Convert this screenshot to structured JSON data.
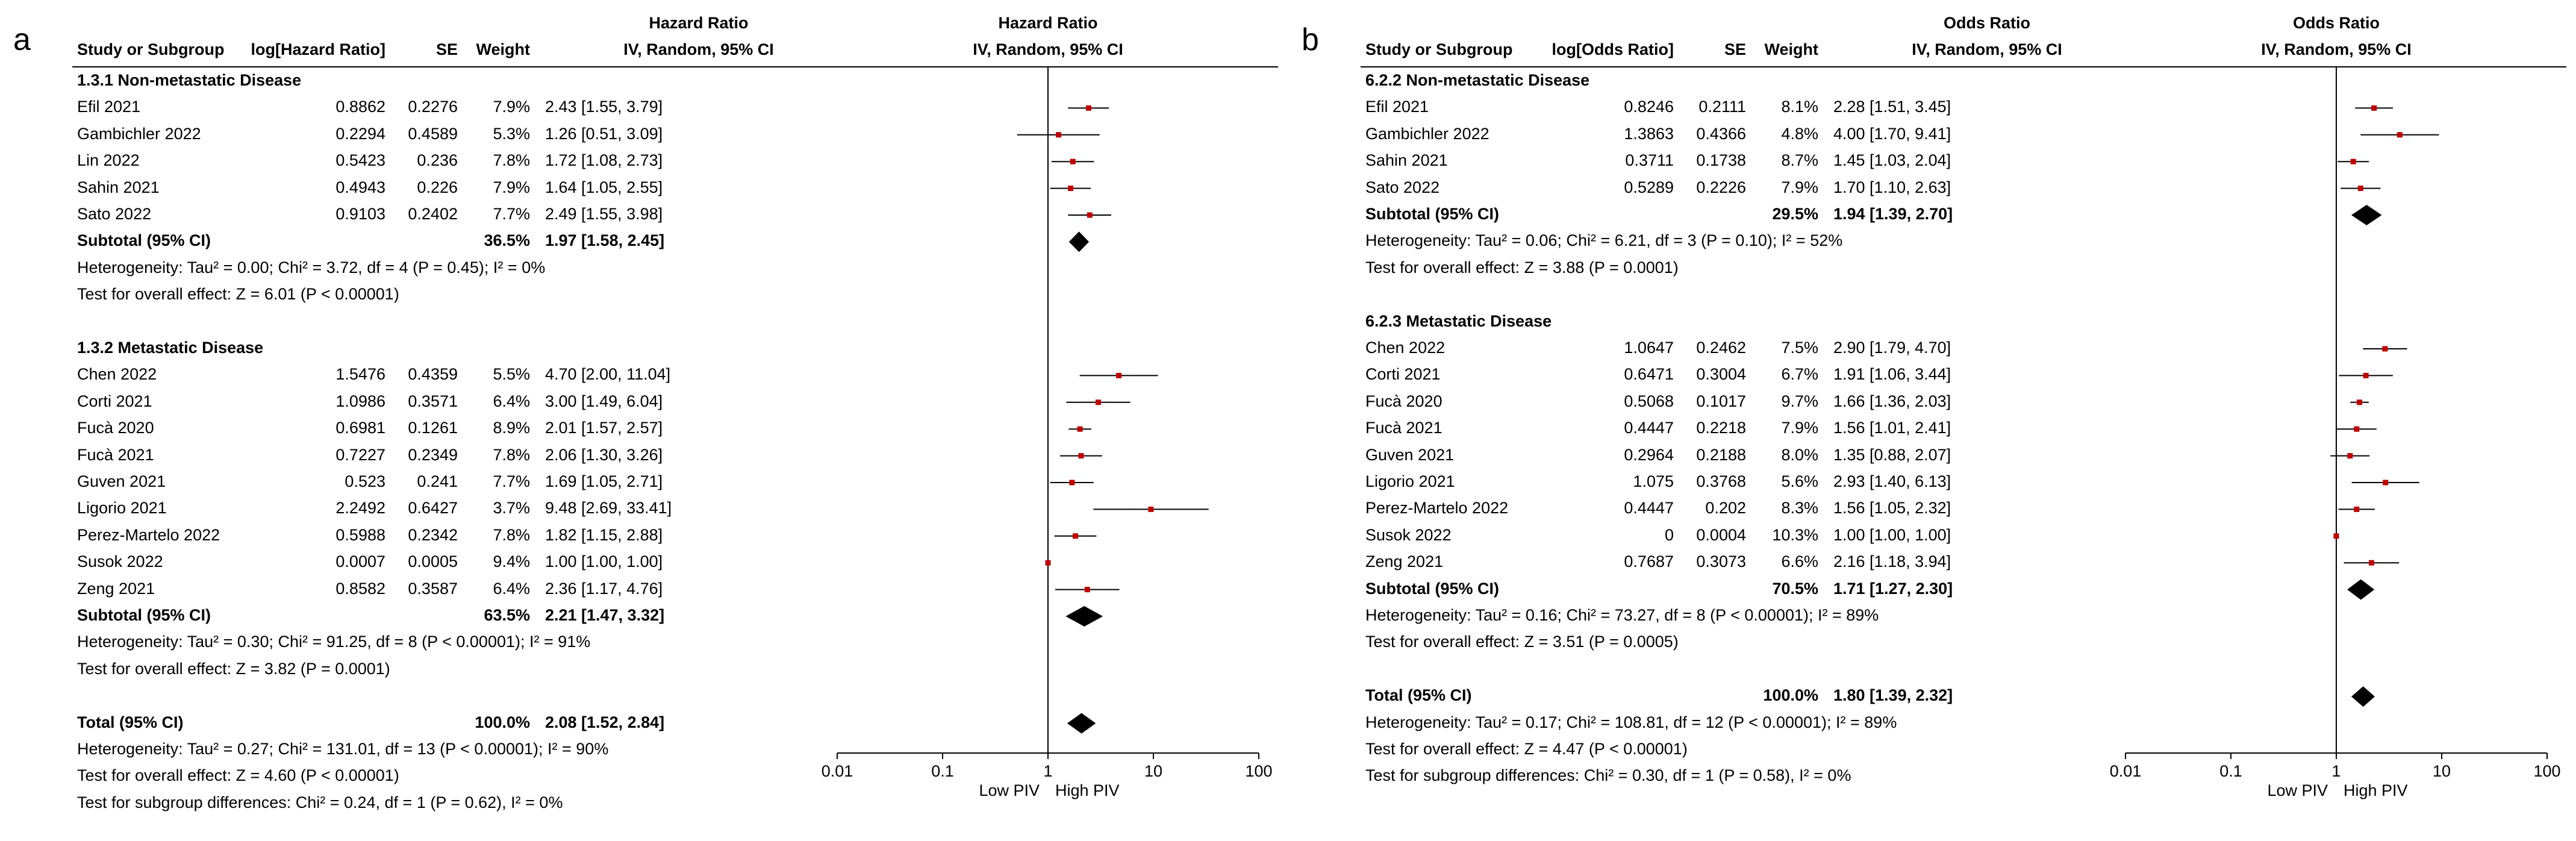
{
  "chart_data": [
    {
      "type": "forest",
      "panel_label": "a",
      "col_headers": {
        "study": "Study or Subgroup",
        "effect": "log[Hazard Ratio]",
        "se": "SE",
        "weight": "Weight",
        "ratio_top": "Hazard Ratio",
        "ratio_sub": "IV, Random, 95% CI",
        "plot_top": "Hazard Ratio",
        "plot_sub": "IV, Random, 95% CI"
      },
      "subgroups": [
        {
          "title": "1.3.1 Non-metastatic Disease",
          "studies": [
            {
              "name": "Efil 2021",
              "effect": "0.8862",
              "se": "0.2276",
              "weight": "7.9%",
              "ci_text": "2.43 [1.55, 3.79]",
              "est": 2.43,
              "lo": 1.55,
              "hi": 3.79
            },
            {
              "name": "Gambichler 2022",
              "effect": "0.2294",
              "se": "0.4589",
              "weight": "5.3%",
              "ci_text": "1.26 [0.51, 3.09]",
              "est": 1.26,
              "lo": 0.51,
              "hi": 3.09
            },
            {
              "name": "Lin 2022",
              "effect": "0.5423",
              "se": "0.236",
              "weight": "7.8%",
              "ci_text": "1.72 [1.08, 2.73]",
              "est": 1.72,
              "lo": 1.08,
              "hi": 2.73
            },
            {
              "name": "Sahin 2021",
              "effect": "0.4943",
              "se": "0.226",
              "weight": "7.9%",
              "ci_text": "1.64 [1.05, 2.55]",
              "est": 1.64,
              "lo": 1.05,
              "hi": 2.55
            },
            {
              "name": "Sato 2022",
              "effect": "0.9103",
              "se": "0.2402",
              "weight": "7.7%",
              "ci_text": "2.49 [1.55, 3.98]",
              "est": 2.49,
              "lo": 1.55,
              "hi": 3.98
            }
          ],
          "subtotal": {
            "label": "Subtotal (95% CI)",
            "weight": "36.5%",
            "ci_text": "1.97 [1.58, 2.45]",
            "est": 1.97,
            "lo": 1.58,
            "hi": 2.45
          },
          "heterogeneity": "Heterogeneity: Tau² = 0.00; Chi² = 3.72, df = 4 (P = 0.45); I² = 0%",
          "overall": "Test for overall effect: Z = 6.01 (P < 0.00001)"
        },
        {
          "title": "1.3.2 Metastatic Disease",
          "studies": [
            {
              "name": "Chen 2022",
              "effect": "1.5476",
              "se": "0.4359",
              "weight": "5.5%",
              "ci_text": "4.70 [2.00, 11.04]",
              "est": 4.7,
              "lo": 2.0,
              "hi": 11.04
            },
            {
              "name": "Corti 2021",
              "effect": "1.0986",
              "se": "0.3571",
              "weight": "6.4%",
              "ci_text": "3.00 [1.49, 6.04]",
              "est": 3.0,
              "lo": 1.49,
              "hi": 6.04
            },
            {
              "name": "Fucà 2020",
              "effect": "0.6981",
              "se": "0.1261",
              "weight": "8.9%",
              "ci_text": "2.01 [1.57, 2.57]",
              "est": 2.01,
              "lo": 1.57,
              "hi": 2.57
            },
            {
              "name": "Fucà 2021",
              "effect": "0.7227",
              "se": "0.2349",
              "weight": "7.8%",
              "ci_text": "2.06 [1.30, 3.26]",
              "est": 2.06,
              "lo": 1.3,
              "hi": 3.26
            },
            {
              "name": "Guven 2021",
              "effect": "0.523",
              "se": "0.241",
              "weight": "7.7%",
              "ci_text": "1.69 [1.05, 2.71]",
              "est": 1.69,
              "lo": 1.05,
              "hi": 2.71
            },
            {
              "name": "Ligorio 2021",
              "effect": "2.2492",
              "se": "0.6427",
              "weight": "3.7%",
              "ci_text": "9.48 [2.69, 33.41]",
              "est": 9.48,
              "lo": 2.69,
              "hi": 33.41
            },
            {
              "name": "Perez-Martelo 2022",
              "effect": "0.5988",
              "se": "0.2342",
              "weight": "7.8%",
              "ci_text": "1.82 [1.15, 2.88]",
              "est": 1.82,
              "lo": 1.15,
              "hi": 2.88
            },
            {
              "name": "Susok 2022",
              "effect": "0.0007",
              "se": "0.0005",
              "weight": "9.4%",
              "ci_text": "1.00 [1.00, 1.00]",
              "est": 1.0,
              "lo": 1.0,
              "hi": 1.0
            },
            {
              "name": "Zeng 2021",
              "effect": "0.8582",
              "se": "0.3587",
              "weight": "6.4%",
              "ci_text": "2.36 [1.17, 4.76]",
              "est": 2.36,
              "lo": 1.17,
              "hi": 4.76
            }
          ],
          "subtotal": {
            "label": "Subtotal (95% CI)",
            "weight": "63.5%",
            "ci_text": "2.21 [1.47, 3.32]",
            "est": 2.21,
            "lo": 1.47,
            "hi": 3.32
          },
          "heterogeneity": "Heterogeneity: Tau² = 0.30; Chi² = 91.25, df = 8 (P < 0.00001); I² = 91%",
          "overall": "Test for overall effect: Z = 3.82 (P = 0.0001)"
        }
      ],
      "total": {
        "label": "Total (95% CI)",
        "weight": "100.0%",
        "ci_text": "2.08 [1.52, 2.84]",
        "est": 2.08,
        "lo": 1.52,
        "hi": 2.84
      },
      "footer": [
        "Heterogeneity: Tau² = 0.27; Chi² = 131.01, df = 13 (P < 0.00001); I² = 90%",
        "Test for overall effect: Z = 4.60 (P < 0.00001)",
        "Test for subgroup differences: Chi² = 0.24, df = 1 (P = 0.62), I² = 0%"
      ],
      "x_scale": "log",
      "xlim": [
        0.01,
        100
      ],
      "x_ticks": [
        0.01,
        0.1,
        1,
        10,
        100
      ],
      "x_tick_labels": [
        "0.01",
        "0.1",
        "1",
        "10",
        "100"
      ],
      "favours_left": "Low PIV",
      "favours_right": "High PIV",
      "marker_color": "#c00000"
    },
    {
      "type": "forest",
      "panel_label": "b",
      "col_headers": {
        "study": "Study or Subgroup",
        "effect": "log[Odds Ratio]",
        "se": "SE",
        "weight": "Weight",
        "ratio_top": "Odds Ratio",
        "ratio_sub": "IV, Random, 95% CI",
        "plot_top": "Odds Ratio",
        "plot_sub": "IV, Random, 95% CI"
      },
      "subgroups": [
        {
          "title": "6.2.2 Non-metastatic Disease",
          "studies": [
            {
              "name": "Efil 2021",
              "effect": "0.8246",
              "se": "0.2111",
              "weight": "8.1%",
              "ci_text": "2.28 [1.51, 3.45]",
              "est": 2.28,
              "lo": 1.51,
              "hi": 3.45
            },
            {
              "name": "Gambichler 2022",
              "effect": "1.3863",
              "se": "0.4366",
              "weight": "4.8%",
              "ci_text": "4.00 [1.70, 9.41]",
              "est": 4.0,
              "lo": 1.7,
              "hi": 9.41
            },
            {
              "name": "Sahin 2021",
              "effect": "0.3711",
              "se": "0.1738",
              "weight": "8.7%",
              "ci_text": "1.45 [1.03, 2.04]",
              "est": 1.45,
              "lo": 1.03,
              "hi": 2.04
            },
            {
              "name": "Sato 2022",
              "effect": "0.5289",
              "se": "0.2226",
              "weight": "7.9%",
              "ci_text": "1.70 [1.10, 2.63]",
              "est": 1.7,
              "lo": 1.1,
              "hi": 2.63
            }
          ],
          "subtotal": {
            "label": "Subtotal (95% CI)",
            "weight": "29.5%",
            "ci_text": "1.94 [1.39, 2.70]",
            "est": 1.94,
            "lo": 1.39,
            "hi": 2.7
          },
          "heterogeneity": "Heterogeneity: Tau² = 0.06; Chi² = 6.21, df = 3 (P = 0.10); I² = 52%",
          "overall": "Test for overall effect: Z = 3.88 (P = 0.0001)"
        },
        {
          "title": "6.2.3 Metastatic Disease",
          "studies": [
            {
              "name": "Chen 2022",
              "effect": "1.0647",
              "se": "0.2462",
              "weight": "7.5%",
              "ci_text": "2.90 [1.79, 4.70]",
              "est": 2.9,
              "lo": 1.79,
              "hi": 4.7
            },
            {
              "name": "Corti 2021",
              "effect": "0.6471",
              "se": "0.3004",
              "weight": "6.7%",
              "ci_text": "1.91 [1.06, 3.44]",
              "est": 1.91,
              "lo": 1.06,
              "hi": 3.44
            },
            {
              "name": "Fucà 2020",
              "effect": "0.5068",
              "se": "0.1017",
              "weight": "9.7%",
              "ci_text": "1.66 [1.36, 2.03]",
              "est": 1.66,
              "lo": 1.36,
              "hi": 2.03
            },
            {
              "name": "Fucà 2021",
              "effect": "0.4447",
              "se": "0.2218",
              "weight": "7.9%",
              "ci_text": "1.56 [1.01, 2.41]",
              "est": 1.56,
              "lo": 1.01,
              "hi": 2.41
            },
            {
              "name": "Guven 2021",
              "effect": "0.2964",
              "se": "0.2188",
              "weight": "8.0%",
              "ci_text": "1.35 [0.88, 2.07]",
              "est": 1.35,
              "lo": 0.88,
              "hi": 2.07
            },
            {
              "name": "Ligorio 2021",
              "effect": "1.075",
              "se": "0.3768",
              "weight": "5.6%",
              "ci_text": "2.93 [1.40, 6.13]",
              "est": 2.93,
              "lo": 1.4,
              "hi": 6.13
            },
            {
              "name": "Perez-Martelo 2022",
              "effect": "0.4447",
              "se": "0.202",
              "weight": "8.3%",
              "ci_text": "1.56 [1.05, 2.32]",
              "est": 1.56,
              "lo": 1.05,
              "hi": 2.32
            },
            {
              "name": "Susok 2022",
              "effect": "0",
              "se": "0.0004",
              "weight": "10.3%",
              "ci_text": "1.00 [1.00, 1.00]",
              "est": 1.0,
              "lo": 1.0,
              "hi": 1.0
            },
            {
              "name": "Zeng 2021",
              "effect": "0.7687",
              "se": "0.3073",
              "weight": "6.6%",
              "ci_text": "2.16 [1.18, 3.94]",
              "est": 2.16,
              "lo": 1.18,
              "hi": 3.94
            }
          ],
          "subtotal": {
            "label": "Subtotal (95% CI)",
            "weight": "70.5%",
            "ci_text": "1.71 [1.27, 2.30]",
            "est": 1.71,
            "lo": 1.27,
            "hi": 2.3
          },
          "heterogeneity": "Heterogeneity: Tau² = 0.16; Chi² = 73.27, df = 8 (P < 0.00001); I² = 89%",
          "overall": "Test for overall effect: Z = 3.51 (P = 0.0005)"
        }
      ],
      "total": {
        "label": "Total (95% CI)",
        "weight": "100.0%",
        "ci_text": "1.80 [1.39, 2.32]",
        "est": 1.8,
        "lo": 1.39,
        "hi": 2.32
      },
      "footer": [
        "Heterogeneity: Tau² = 0.17; Chi² = 108.81, df = 12 (P < 0.00001); I² = 89%",
        "Test for overall effect: Z = 4.47 (P < 0.00001)",
        "Test for subgroup differences: Chi² = 0.30, df = 1 (P = 0.58), I² = 0%"
      ],
      "x_scale": "log",
      "xlim": [
        0.01,
        100
      ],
      "x_ticks": [
        0.01,
        0.1,
        1,
        10,
        100
      ],
      "x_tick_labels": [
        "0.01",
        "0.1",
        "1",
        "10",
        "100"
      ],
      "favours_left": "Low PIV",
      "favours_right": "High PIV",
      "marker_color": "#c00000"
    }
  ]
}
